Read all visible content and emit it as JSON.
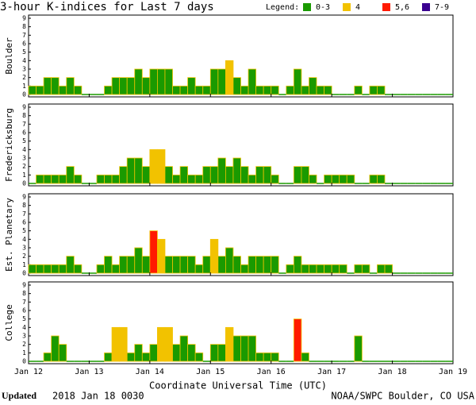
{
  "title": "3-hour K-indices for Last 7 days",
  "legend": {
    "label": "Legend:",
    "items": [
      {
        "label": "0-3",
        "color": "#1a9a00"
      },
      {
        "label": "4",
        "color": "#f2c200"
      },
      {
        "label": "5,6",
        "color": "#ff1a00"
      },
      {
        "label": "7-9",
        "color": "#3a0090"
      }
    ]
  },
  "x_labels": [
    "Jan 12",
    "Jan 13",
    "Jan 14",
    "Jan 15",
    "Jan 16",
    "Jan 17",
    "Jan 18",
    "Jan 19"
  ],
  "x_axis_label": "Coordinate Universal Time (UTC)",
  "footer": {
    "updated_label": "Updated",
    "updated_time": "2018 Jan 18 0030",
    "source": "NOAA/SWPC Boulder, CO USA"
  },
  "chart_data": [
    {
      "type": "bar",
      "y_label": "Boulder",
      "ylim": [
        0,
        9
      ],
      "yticks": [
        0,
        1,
        2,
        3,
        4,
        5,
        6,
        7,
        8,
        9
      ],
      "values": [
        1,
        1,
        2,
        2,
        1,
        2,
        1,
        0,
        0,
        0,
        1,
        2,
        2,
        2,
        3,
        2,
        3,
        3,
        3,
        1,
        1,
        2,
        1,
        1,
        3,
        3,
        4,
        2,
        1,
        3,
        1,
        1,
        1,
        0,
        1,
        3,
        1,
        2,
        1,
        1,
        0,
        0,
        0,
        1,
        0,
        1,
        1,
        0,
        0,
        0,
        0,
        0,
        0,
        0,
        0,
        0
      ]
    },
    {
      "type": "bar",
      "y_label": "Fredericksburg",
      "ylim": [
        0,
        9
      ],
      "yticks": [
        0,
        1,
        2,
        3,
        4,
        5,
        6,
        7,
        8,
        9
      ],
      "values": [
        0,
        1,
        1,
        1,
        1,
        2,
        1,
        0,
        0,
        1,
        1,
        1,
        2,
        3,
        3,
        2,
        4,
        4,
        2,
        1,
        2,
        1,
        1,
        2,
        2,
        3,
        2,
        3,
        2,
        1,
        2,
        2,
        1,
        0,
        0,
        2,
        2,
        1,
        0,
        1,
        1,
        1,
        1,
        0,
        0,
        1,
        1,
        0,
        0,
        0,
        0,
        0,
        0,
        0,
        0,
        0
      ]
    },
    {
      "type": "bar",
      "y_label": "Est. Planetary",
      "ylim": [
        0,
        9
      ],
      "yticks": [
        0,
        1,
        2,
        3,
        4,
        5,
        6,
        7,
        8,
        9
      ],
      "values": [
        1,
        1,
        1,
        1,
        1,
        2,
        1,
        0,
        0,
        1,
        2,
        1,
        2,
        2,
        3,
        2,
        5,
        4,
        2,
        2,
        2,
        2,
        1,
        2,
        4,
        2,
        3,
        2,
        1,
        2,
        2,
        2,
        2,
        0,
        1,
        2,
        1,
        1,
        1,
        1,
        1,
        1,
        0,
        1,
        1,
        0,
        1,
        1,
        0,
        0,
        0,
        0,
        0,
        0,
        0,
        0
      ]
    },
    {
      "type": "bar",
      "y_label": "College",
      "ylim": [
        0,
        9
      ],
      "yticks": [
        0,
        1,
        2,
        3,
        4,
        5,
        6,
        7,
        8,
        9
      ],
      "values": [
        0,
        0,
        1,
        3,
        2,
        0,
        0,
        0,
        0,
        0,
        1,
        4,
        4,
        1,
        2,
        1,
        2,
        4,
        4,
        2,
        3,
        2,
        1,
        0,
        2,
        2,
        4,
        3,
        3,
        3,
        1,
        1,
        1,
        0,
        0,
        5,
        1,
        0,
        0,
        0,
        0,
        0,
        0,
        3,
        0,
        0,
        0,
        0,
        0,
        0,
        0,
        0,
        0,
        0,
        0,
        0
      ]
    }
  ]
}
